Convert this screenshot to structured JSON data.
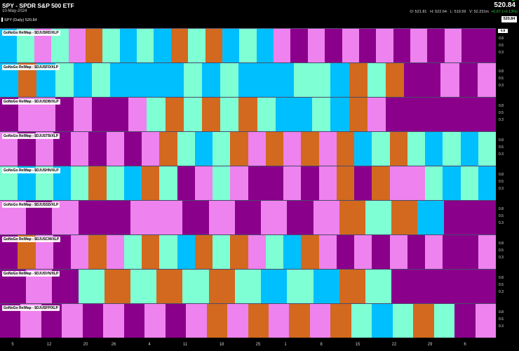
{
  "header": {
    "title": "SPY - SPDR S&P 500 ETF",
    "date": "10-May-2024",
    "price": "520.84",
    "ohlc": {
      "o": "O: 521.81",
      "h": "H: 522.64",
      "l": "L: 519.59",
      "v": "V: 52.231m",
      "chg": "+0.67 (+0.13%)"
    },
    "spy_label": "SPY (Daily) 520.84",
    "price_tag": "520.84"
  },
  "axis_ticks": [
    "0.8",
    "0.5",
    "0.3"
  ],
  "axis_tag": "0.8",
  "xaxis_ticks": [
    "5",
    "12",
    "20",
    "26",
    "4",
    "11",
    "18",
    "25",
    "1",
    "8",
    "15",
    "22",
    "29",
    "6"
  ],
  "colors": {
    "P": "#8b008b",
    "L": "#ee82ee",
    "T": "#7fffd4",
    "B": "#00bfff",
    "O": "#d2691e"
  },
  "panels": [
    {
      "label": "GoNoGo RelMap - $DJUSRD/XLP",
      "colors": [
        "B",
        "T",
        "L",
        "T",
        "L",
        "O",
        "T",
        "B",
        "T",
        "B",
        "O",
        "T",
        "O",
        "B",
        "T",
        "B",
        "L",
        "P",
        "L",
        "P",
        "L",
        "P",
        "L",
        "P",
        "L",
        "P",
        "L",
        "P",
        "P"
      ]
    },
    {
      "label": "GoNoGo RelMap - $DJUSFD/XLP",
      "colors": [
        "B",
        "O",
        "B",
        "T",
        "B",
        "T",
        "B",
        "B",
        "B",
        "B",
        "T",
        "B",
        "T",
        "B",
        "B",
        "B",
        "T",
        "T",
        "B",
        "O",
        "T",
        "O",
        "P",
        "P",
        "L",
        "P",
        "L"
      ]
    },
    {
      "label": "GoNoGo RelMap - $DJUSDB/XLP",
      "colors": [
        "P",
        "L",
        "L",
        "P",
        "L",
        "P",
        "P",
        "L",
        "T",
        "O",
        "T",
        "O",
        "T",
        "O",
        "T",
        "B",
        "B",
        "T",
        "B",
        "O",
        "L",
        "P",
        "P",
        "P",
        "P",
        "P",
        "P"
      ]
    },
    {
      "label": "GoNoGo RelMap - $DJUSTB/XLP",
      "colors": [
        "L",
        "P",
        "L",
        "P",
        "L",
        "P",
        "L",
        "P",
        "L",
        "O",
        "T",
        "B",
        "T",
        "O",
        "L",
        "O",
        "L",
        "O",
        "L",
        "O",
        "B",
        "T",
        "O",
        "T",
        "B",
        "T",
        "B",
        "T"
      ]
    },
    {
      "label": "GoNoGo RelMap - $DJUSHN/XLP",
      "colors": [
        "T",
        "B",
        "T",
        "B",
        "T",
        "O",
        "T",
        "B",
        "O",
        "T",
        "P",
        "L",
        "T",
        "L",
        "P",
        "P",
        "L",
        "P",
        "L",
        "O",
        "P",
        "O",
        "L",
        "L",
        "T",
        "B",
        "T",
        "B"
      ]
    },
    {
      "label": "GoNoGo RelMap - $DJUSSD/XLP",
      "colors": [
        "L",
        "P",
        "L",
        "P",
        "P",
        "L",
        "L",
        "P",
        "L",
        "P",
        "L",
        "P",
        "L",
        "O",
        "T",
        "O",
        "B",
        "P",
        "P"
      ]
    },
    {
      "label": "GoNoGo RelMap - $DJUSCM/XLP",
      "colors": [
        "P",
        "O",
        "L",
        "P",
        "L",
        "O",
        "L",
        "T",
        "O",
        "T",
        "B",
        "O",
        "T",
        "O",
        "L",
        "T",
        "B",
        "O",
        "L",
        "P",
        "L",
        "P",
        "L",
        "P",
        "L",
        "P",
        "P",
        "L"
      ]
    },
    {
      "label": "GoNoGo RelMap - $DJUSVN/XLP",
      "colors": [
        "P",
        "L",
        "P",
        "T",
        "O",
        "T",
        "O",
        "T",
        "O",
        "T",
        "B",
        "T",
        "B",
        "O",
        "T",
        "P",
        "P",
        "P",
        "P"
      ]
    },
    {
      "label": "GoNoGo RelMap - $DJUSFP/XLP",
      "colors": [
        "P",
        "L",
        "P",
        "L",
        "P",
        "L",
        "P",
        "L",
        "P",
        "L",
        "O",
        "L",
        "O",
        "L",
        "O",
        "L",
        "O",
        "T",
        "B",
        "T",
        "O",
        "T",
        "P",
        "L"
      ]
    }
  ]
}
